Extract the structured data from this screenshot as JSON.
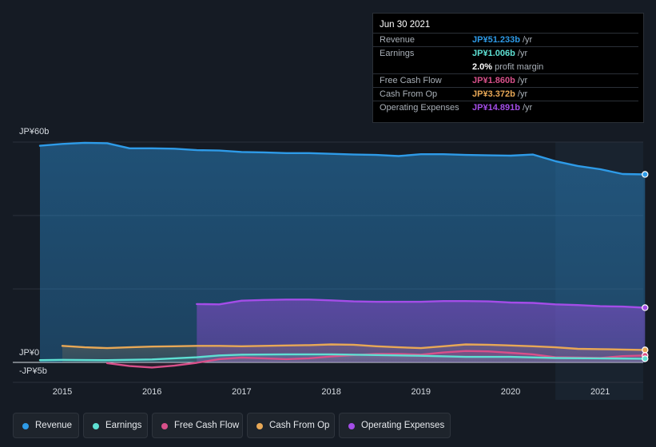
{
  "tooltip": {
    "date": "Jun 30 2021",
    "rows": [
      {
        "label": "Revenue",
        "value": "JP¥51.233b",
        "unit": "/yr",
        "color": "#2e9be8"
      },
      {
        "label": "Earnings",
        "value": "JP¥1.006b",
        "unit": "/yr",
        "color": "#5ee0d3"
      },
      {
        "label": "",
        "value": "2.0%",
        "unit": "profit margin",
        "color": "#ffffff"
      },
      {
        "label": "Free Cash Flow",
        "value": "JP¥1.860b",
        "unit": "/yr",
        "color": "#d8508a"
      },
      {
        "label": "Cash From Op",
        "value": "JP¥3.372b",
        "unit": "/yr",
        "color": "#e8a856"
      },
      {
        "label": "Operating Expenses",
        "value": "JP¥14.891b",
        "unit": "/yr",
        "color": "#a44de8"
      }
    ]
  },
  "legend": [
    {
      "label": "Revenue",
      "color": "#2e9be8"
    },
    {
      "label": "Earnings",
      "color": "#5ee0d3"
    },
    {
      "label": "Free Cash Flow",
      "color": "#d8508a"
    },
    {
      "label": "Cash From Op",
      "color": "#e8a856"
    },
    {
      "label": "Operating Expenses",
      "color": "#a44de8"
    }
  ],
  "chart_data": {
    "type": "area",
    "ylim": [
      -5,
      60
    ],
    "xlim": [
      2014.75,
      2021.5
    ],
    "y_tick_labels": [
      "JP¥60b",
      "JP¥0",
      "-JP¥5b"
    ],
    "y_tick_values": [
      60,
      0,
      -5
    ],
    "x_tick_labels": [
      "2015",
      "2016",
      "2017",
      "2018",
      "2019",
      "2020",
      "2021"
    ],
    "x_tick_values": [
      2015,
      2016,
      2017,
      2018,
      2019,
      2020,
      2021
    ],
    "highlight_range": [
      2020.5,
      2021.5
    ],
    "series": [
      {
        "name": "Revenue",
        "color": "#2e9be8",
        "x": [
          2014.75,
          2015.0,
          2015.25,
          2015.5,
          2015.75,
          2016.0,
          2016.25,
          2016.5,
          2016.75,
          2017.0,
          2017.25,
          2017.5,
          2017.75,
          2018.0,
          2018.25,
          2018.5,
          2018.75,
          2019.0,
          2019.25,
          2019.5,
          2019.75,
          2020.0,
          2020.25,
          2020.5,
          2020.75,
          2021.0,
          2021.25,
          2021.5
        ],
        "y": [
          59.0,
          59.5,
          59.8,
          59.7,
          58.3,
          58.3,
          58.2,
          57.8,
          57.7,
          57.3,
          57.2,
          57.0,
          57.0,
          56.8,
          56.6,
          56.5,
          56.2,
          56.7,
          56.7,
          56.5,
          56.4,
          56.3,
          56.6,
          54.8,
          53.5,
          52.6,
          51.3,
          51.2
        ]
      },
      {
        "name": "Earnings",
        "color": "#5ee0d3",
        "x": [
          2014.75,
          2015.0,
          2015.5,
          2016.0,
          2016.5,
          2016.75,
          2017.0,
          2017.5,
          2018.0,
          2018.5,
          2019.0,
          2019.5,
          2020.0,
          2020.5,
          2021.0,
          2021.5
        ],
        "y": [
          0.6,
          0.7,
          0.6,
          0.8,
          1.4,
          1.9,
          2.1,
          2.2,
          2.2,
          2.0,
          1.8,
          1.5,
          1.5,
          1.2,
          1.1,
          1.0
        ]
      },
      {
        "name": "Free Cash Flow",
        "color": "#d8508a",
        "x": [
          2015.5,
          2015.75,
          2016.0,
          2016.25,
          2016.5,
          2016.75,
          2017.0,
          2017.25,
          2017.5,
          2017.75,
          2018.0,
          2018.25,
          2018.5,
          2018.75,
          2019.0,
          2019.25,
          2019.5,
          2019.75,
          2020.0,
          2020.25,
          2020.5,
          2020.75,
          2021.0,
          2021.25,
          2021.5
        ],
        "y": [
          -0.2,
          -1.0,
          -1.4,
          -0.9,
          -0.1,
          0.9,
          1.3,
          1.1,
          0.9,
          1.1,
          1.6,
          2.0,
          2.3,
          2.3,
          2.1,
          2.7,
          3.1,
          3.0,
          2.6,
          2.2,
          1.4,
          1.3,
          1.2,
          1.7,
          1.9
        ]
      },
      {
        "name": "Cash From Op",
        "color": "#e8a856",
        "x": [
          2015.0,
          2015.25,
          2015.5,
          2015.75,
          2016.0,
          2016.25,
          2016.5,
          2016.75,
          2017.0,
          2017.25,
          2017.5,
          2017.75,
          2018.0,
          2018.25,
          2018.5,
          2018.75,
          2019.0,
          2019.25,
          2019.5,
          2019.75,
          2020.0,
          2020.25,
          2020.5,
          2020.75,
          2021.0,
          2021.25,
          2021.5
        ],
        "y": [
          4.5,
          4.1,
          3.9,
          4.1,
          4.3,
          4.4,
          4.5,
          4.5,
          4.4,
          4.5,
          4.6,
          4.7,
          4.9,
          4.8,
          4.4,
          4.1,
          3.9,
          4.4,
          4.9,
          4.8,
          4.6,
          4.4,
          4.1,
          3.7,
          3.6,
          3.5,
          3.4
        ]
      },
      {
        "name": "Operating Expenses",
        "color": "#a44de8",
        "x": [
          2016.5,
          2016.75,
          2017.0,
          2017.25,
          2017.5,
          2017.75,
          2018.0,
          2018.25,
          2018.5,
          2018.75,
          2019.0,
          2019.25,
          2019.5,
          2019.75,
          2020.0,
          2020.25,
          2020.5,
          2020.75,
          2021.0,
          2021.25,
          2021.5
        ],
        "y": [
          15.9,
          15.8,
          16.8,
          17.0,
          17.1,
          17.1,
          16.9,
          16.6,
          16.5,
          16.5,
          16.5,
          16.7,
          16.7,
          16.6,
          16.3,
          16.2,
          15.8,
          15.6,
          15.3,
          15.2,
          14.9
        ]
      }
    ]
  }
}
